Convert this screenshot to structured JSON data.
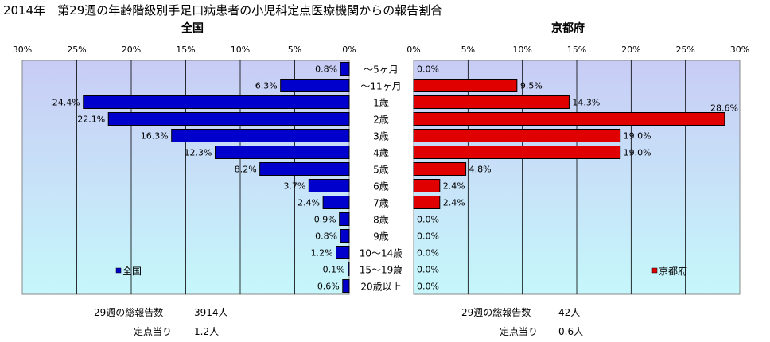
{
  "header": {
    "title": "2014年　第29週の年齢階級別手足口病患者の小児科定点医療機関からの報告割合"
  },
  "chart_data": [
    {
      "type": "bar",
      "orientation": "horizontal-mirrored",
      "title": "全国",
      "legend": "全国",
      "legend_position": "bottom-left",
      "categories": [
        "～5ヶ月",
        "～11ヶ月",
        "1歳",
        "2歳",
        "3歳",
        "4歳",
        "5歳",
        "6歳",
        "7歳",
        "8歳",
        "9歳",
        "10～14歳",
        "15～19歳",
        "20歳以上"
      ],
      "series": [
        {
          "name": "全国",
          "values": [
            0.8,
            6.3,
            24.4,
            22.1,
            16.3,
            12.3,
            8.2,
            3.7,
            2.4,
            0.9,
            0.8,
            1.2,
            0.1,
            0.6
          ],
          "color": "#0000cc"
        }
      ],
      "value_labels": [
        "0.8%",
        "6.3%",
        "24.4%",
        "22.1%",
        "16.3%",
        "12.3%",
        "8.2%",
        "3.7%",
        "2.4%",
        "0.9%",
        "0.8%",
        "1.2%",
        "0.1%",
        "0.6%"
      ],
      "xlim": [
        0,
        30
      ],
      "ticks": [
        "30%",
        "25%",
        "20%",
        "15%",
        "10%",
        "5%",
        "0%"
      ],
      "grid": true
    },
    {
      "type": "bar",
      "orientation": "horizontal",
      "title": "京都府",
      "legend": "京都府",
      "legend_position": "bottom-right",
      "categories": [
        "～5ヶ月",
        "～11ヶ月",
        "1歳",
        "2歳",
        "3歳",
        "4歳",
        "5歳",
        "6歳",
        "7歳",
        "8歳",
        "9歳",
        "10～14歳",
        "15～19歳",
        "20歳以上"
      ],
      "series": [
        {
          "name": "京都府",
          "values": [
            0.0,
            9.5,
            14.3,
            28.6,
            19.0,
            19.0,
            4.8,
            2.4,
            2.4,
            0.0,
            0.0,
            0.0,
            0.0,
            0.0
          ],
          "color": "#e00000"
        }
      ],
      "value_labels": [
        "0.0%",
        "9.5%",
        "14.3%",
        "28.6%",
        "19.0%",
        "19.0%",
        "4.8%",
        "2.4%",
        "2.4%",
        "0.0%",
        "0.0%",
        "0.0%",
        "0.0%",
        "0.0%"
      ],
      "xlim": [
        0,
        30
      ],
      "ticks": [
        "0%",
        "5%",
        "10%",
        "15%",
        "20%",
        "25%",
        "30%"
      ],
      "grid": true
    }
  ],
  "summary": {
    "national": {
      "total_label": "29週の総報告数",
      "total_value": "3914人",
      "per_label": "定点当り",
      "per_value": "1.2人"
    },
    "kyoto": {
      "total_label": "29週の総報告数",
      "total_value": "42人",
      "per_label": "定点当り",
      "per_value": "0.6人"
    }
  },
  "colors": {
    "plot_top": "#c8ccf5",
    "plot_bottom": "#c6f7fb",
    "national_bar": "#0000cc",
    "kyoto_bar": "#e00000"
  }
}
